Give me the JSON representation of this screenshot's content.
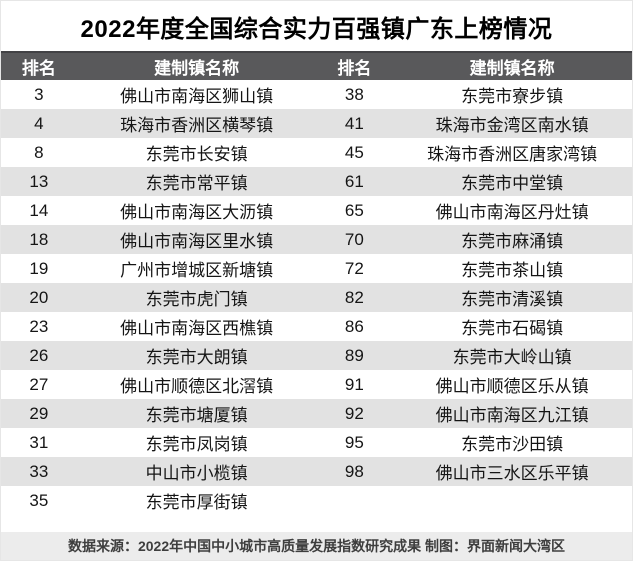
{
  "chart_data": {
    "type": "table",
    "title": "2022年度全国综合实力百强镇广东上榜情况",
    "columns": [
      "排名",
      "建制镇名称",
      "排名",
      "建制镇名称"
    ],
    "rows": [
      [
        "3",
        "佛山市南海区狮山镇",
        "38",
        "东莞市寮步镇"
      ],
      [
        "4",
        "珠海市香洲区横琴镇",
        "41",
        "珠海市金湾区南水镇"
      ],
      [
        "8",
        "东莞市长安镇",
        "45",
        "珠海市香洲区唐家湾镇"
      ],
      [
        "13",
        "东莞市常平镇",
        "61",
        "东莞市中堂镇"
      ],
      [
        "14",
        "佛山市南海区大沥镇",
        "65",
        "佛山市南海区丹灶镇"
      ],
      [
        "18",
        "佛山市南海区里水镇",
        "70",
        "东莞市麻涌镇"
      ],
      [
        "19",
        "广州市增城区新塘镇",
        "72",
        "东莞市茶山镇"
      ],
      [
        "20",
        "东莞市虎门镇",
        "82",
        "东莞市清溪镇"
      ],
      [
        "23",
        "佛山市南海区西樵镇",
        "86",
        "东莞市石碣镇"
      ],
      [
        "26",
        "东莞市大朗镇",
        "89",
        "东莞市大岭山镇"
      ],
      [
        "27",
        "佛山市顺德区北滘镇",
        "91",
        "佛山市顺德区乐从镇"
      ],
      [
        "29",
        "东莞市塘厦镇",
        "92",
        "佛山市南海区九江镇"
      ],
      [
        "31",
        "东莞市凤岗镇",
        "95",
        "东莞市沙田镇"
      ],
      [
        "33",
        "中山市小榄镇",
        "98",
        "佛山市三水区乐平镇"
      ],
      [
        "35",
        "东莞市厚街镇",
        "",
        ""
      ]
    ],
    "source_note": "数据来源：2022年中国中小城市高质量发展指数研究成果 制图：界面新闻大湾区",
    "layout": {
      "legend": "none",
      "grid": "off",
      "stripe_pattern": "alternating rows, odd white / even gray"
    },
    "colors": {
      "header_bg": "#59595b",
      "header_text": "#ffffff",
      "stripe_bg": "#e2e2e2",
      "row_bg": "#ffffff",
      "footer_bg": "#ececec",
      "footer_text": "#3e3e3e",
      "title_text": "#000000",
      "body_text": "#151515"
    }
  }
}
